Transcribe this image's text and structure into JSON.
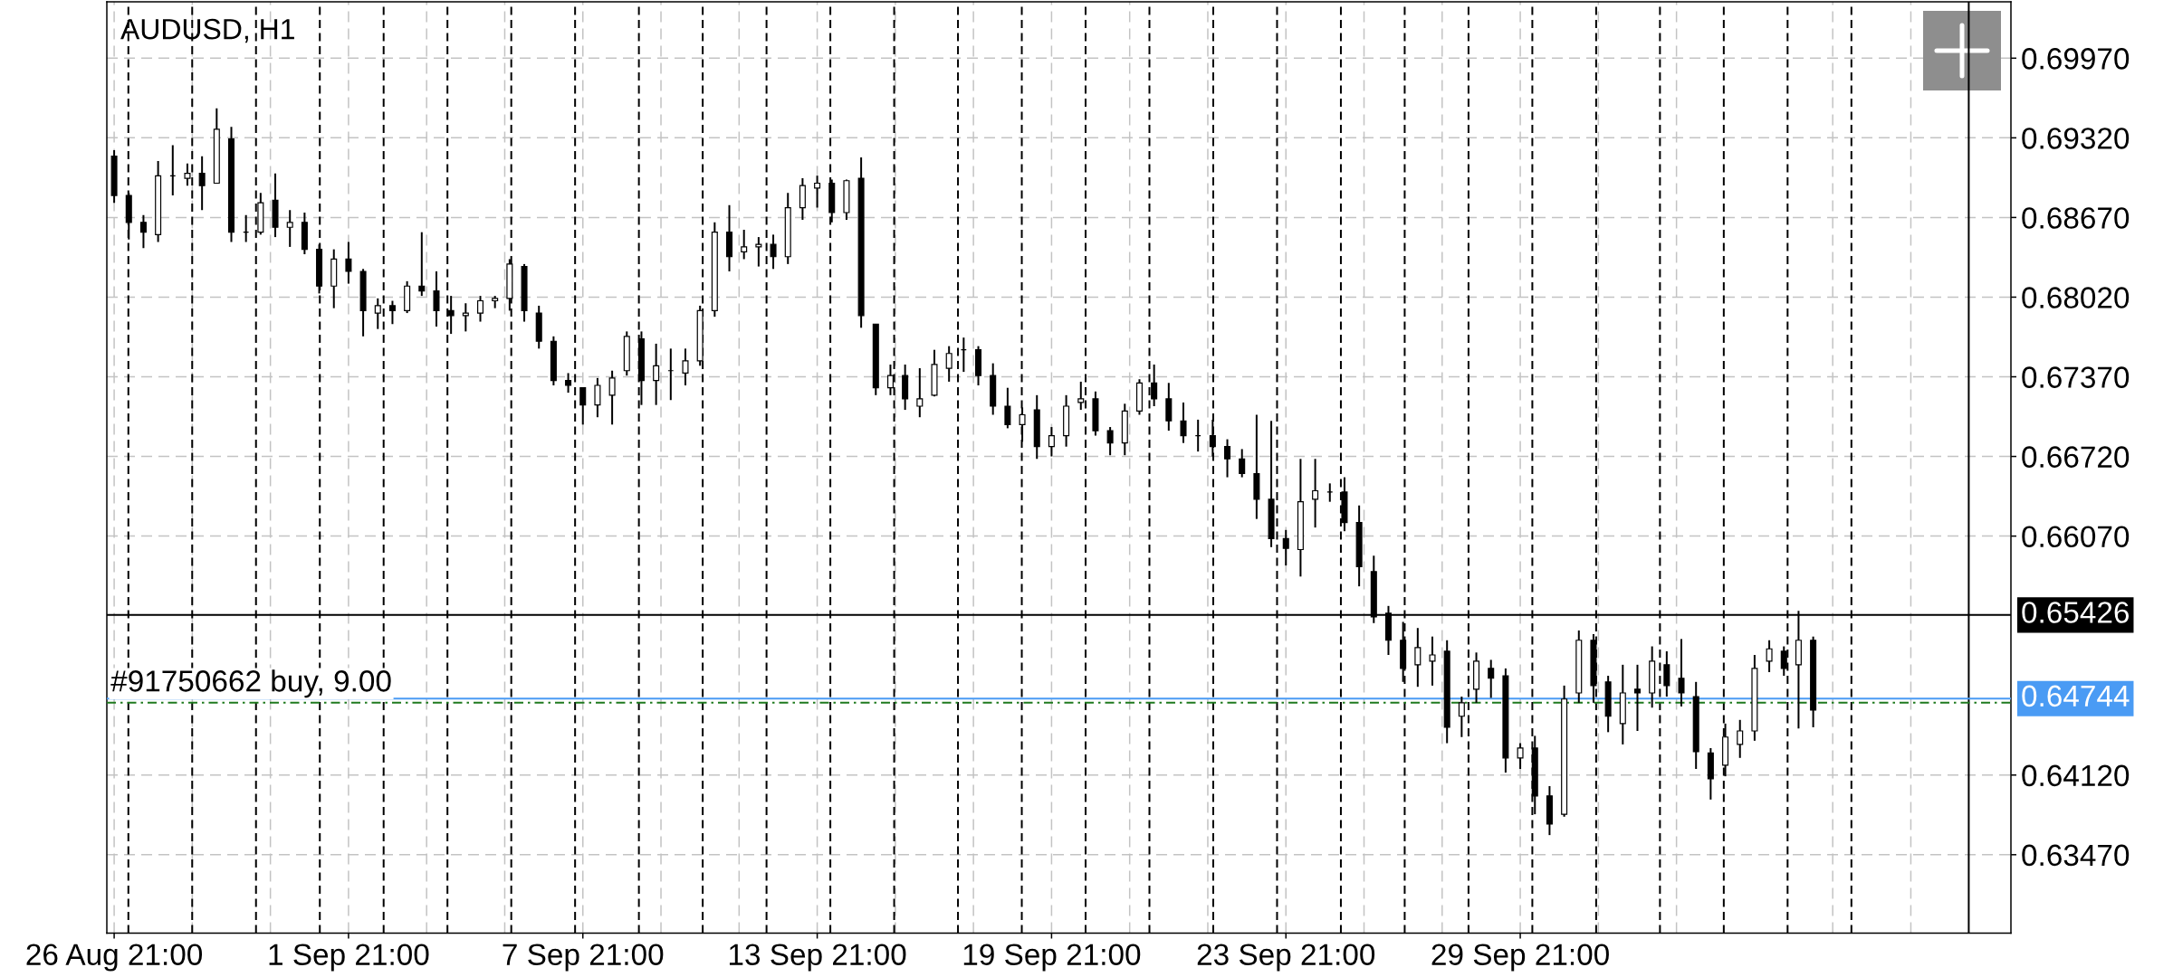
{
  "chart_data": {
    "type": "candlestick",
    "title": "AUDUSD, H1",
    "color": "#000000",
    "categories": [
      "26 Aug 21:00",
      null,
      null,
      null,
      null,
      null,
      null,
      null,
      null,
      null,
      null,
      null,
      null,
      null,
      null,
      null,
      "1 Sep 21:00",
      null,
      null,
      null,
      null,
      null,
      null,
      null,
      null,
      null,
      null,
      null,
      null,
      null,
      null,
      null,
      "7 Sep 21:00",
      null,
      null,
      null,
      null,
      null,
      null,
      null,
      null,
      null,
      null,
      null,
      null,
      null,
      null,
      null,
      "13 Sep 21:00",
      null,
      null,
      null,
      null,
      null,
      null,
      null,
      null,
      null,
      null,
      null,
      null,
      null,
      null,
      null,
      "19 Sep 21:00",
      null,
      null,
      null,
      null,
      null,
      null,
      null,
      null,
      null,
      null,
      null,
      null,
      null,
      null,
      null,
      "23 Sep 21:00",
      null,
      null,
      null,
      null,
      null,
      null,
      null,
      null,
      null,
      null,
      null,
      null,
      null,
      null,
      null,
      "29 Sep 21:00",
      null,
      null,
      null,
      null,
      null,
      null,
      null,
      null,
      null,
      null,
      null,
      null,
      null,
      null,
      null,
      null,
      null,
      null,
      null,
      null,
      null,
      null,
      null,
      null,
      null,
      null,
      null,
      null,
      null,
      null,
      null,
      null,
      null
    ],
    "ohlc": [
      [
        0.6917,
        0.6922,
        0.6879,
        0.6885
      ],
      [
        0.6885,
        0.6887,
        0.6849,
        0.6863
      ],
      [
        0.6863,
        0.6869,
        0.6842,
        0.6855
      ],
      [
        0.6853,
        0.6913,
        0.6847,
        0.6901
      ],
      [
        0.6901,
        0.6926,
        0.6885,
        0.6901
      ],
      [
        0.6899,
        0.6911,
        0.6893,
        0.6903
      ],
      [
        0.6903,
        0.6917,
        0.6873,
        0.6893
      ],
      [
        0.6895,
        0.6956,
        0.6895,
        0.6939
      ],
      [
        0.6931,
        0.6941,
        0.6847,
        0.6855
      ],
      [
        0.6855,
        0.6869,
        0.6847,
        0.6855
      ],
      [
        0.6855,
        0.6887,
        0.6853,
        0.6879
      ],
      [
        0.6881,
        0.6903,
        0.6851,
        0.6859
      ],
      [
        0.6859,
        0.6873,
        0.6843,
        0.6863
      ],
      [
        0.6863,
        0.6871,
        0.6837,
        0.6841
      ],
      [
        0.6841,
        0.6845,
        0.6805,
        0.6811
      ],
      [
        0.6811,
        0.6841,
        0.6793,
        0.6833
      ],
      [
        0.6833,
        0.6847,
        0.6813,
        0.6823
      ],
      [
        0.6823,
        0.6825,
        0.677,
        0.6791
      ],
      [
        0.6789,
        0.6801,
        0.6776,
        0.6795
      ],
      [
        0.6795,
        0.6799,
        0.678,
        0.6791
      ],
      [
        0.6791,
        0.6815,
        0.6789,
        0.6811
      ],
      [
        0.6811,
        0.6855,
        0.6803,
        0.6807
      ],
      [
        0.6807,
        0.6823,
        0.6778,
        0.6791
      ],
      [
        0.6791,
        0.6803,
        0.6772,
        0.6787
      ],
      [
        0.6787,
        0.6797,
        0.6774,
        0.6789
      ],
      [
        0.6789,
        0.6803,
        0.6782,
        0.6799
      ],
      [
        0.6799,
        0.6803,
        0.6793,
        0.6801
      ],
      [
        0.6801,
        0.6833,
        0.6791,
        0.6829
      ],
      [
        0.6827,
        0.6829,
        0.6782,
        0.6791
      ],
      [
        0.6789,
        0.6795,
        0.676,
        0.6766
      ],
      [
        0.6766,
        0.677,
        0.673,
        0.6734
      ],
      [
        0.6734,
        0.674,
        0.6724,
        0.673
      ],
      [
        0.6728,
        0.6728,
        0.6698,
        0.6714
      ],
      [
        0.6714,
        0.6736,
        0.6704,
        0.673
      ],
      [
        0.6722,
        0.6742,
        0.6698,
        0.6736
      ],
      [
        0.6742,
        0.6774,
        0.6738,
        0.677
      ],
      [
        0.6768,
        0.6774,
        0.6714,
        0.6734
      ],
      [
        0.6734,
        0.6764,
        0.6714,
        0.6746
      ],
      [
        0.6742,
        0.676,
        0.6718,
        0.6742
      ],
      [
        0.674,
        0.676,
        0.673,
        0.675
      ],
      [
        0.675,
        0.6795,
        0.6746,
        0.6791
      ],
      [
        0.6791,
        0.6863,
        0.6786,
        0.6855
      ],
      [
        0.6855,
        0.6877,
        0.6823,
        0.6835
      ],
      [
        0.6839,
        0.6857,
        0.6833,
        0.6843
      ],
      [
        0.6843,
        0.6851,
        0.6827,
        0.6845
      ],
      [
        0.6845,
        0.6853,
        0.6825,
        0.6835
      ],
      [
        0.6835,
        0.6887,
        0.6829,
        0.6875
      ],
      [
        0.6875,
        0.6899,
        0.6865,
        0.6893
      ],
      [
        0.6891,
        0.6901,
        0.6875,
        0.6895
      ],
      [
        0.6895,
        0.6898,
        0.6863,
        0.6871
      ],
      [
        0.6871,
        0.6898,
        0.6865,
        0.6897
      ],
      [
        0.6899,
        0.6916,
        0.6777,
        0.6787
      ],
      [
        0.678,
        0.678,
        0.6722,
        0.6728
      ],
      [
        0.6728,
        0.6747,
        0.6722,
        0.6738
      ],
      [
        0.6738,
        0.6747,
        0.671,
        0.6719
      ],
      [
        0.6713,
        0.6744,
        0.6704,
        0.6719
      ],
      [
        0.6722,
        0.6759,
        0.6721,
        0.6747
      ],
      [
        0.6744,
        0.6762,
        0.6733,
        0.6756
      ],
      [
        0.6759,
        0.6769,
        0.6741,
        0.6759
      ],
      [
        0.6759,
        0.6762,
        0.673,
        0.6738
      ],
      [
        0.6738,
        0.6748,
        0.6706,
        0.6713
      ],
      [
        0.6713,
        0.6728,
        0.6695,
        0.6698
      ],
      [
        0.6698,
        0.6712,
        0.6684,
        0.6706
      ],
      [
        0.671,
        0.6722,
        0.667,
        0.668
      ],
      [
        0.668,
        0.6696,
        0.6672,
        0.6689
      ],
      [
        0.6689,
        0.6722,
        0.668,
        0.6713
      ],
      [
        0.6716,
        0.6733,
        0.671,
        0.6719
      ],
      [
        0.6719,
        0.6725,
        0.6689,
        0.6693
      ],
      [
        0.6693,
        0.6696,
        0.6673,
        0.6683
      ],
      [
        0.6683,
        0.6715,
        0.6673,
        0.6709
      ],
      [
        0.6709,
        0.6735,
        0.6706,
        0.6732
      ],
      [
        0.6732,
        0.6747,
        0.6713,
        0.6719
      ],
      [
        0.6719,
        0.6732,
        0.6693,
        0.6701
      ],
      [
        0.6701,
        0.6716,
        0.6683,
        0.6689
      ],
      [
        0.6689,
        0.6702,
        0.6676,
        0.6689
      ],
      [
        0.6689,
        0.6702,
        0.6672,
        0.668
      ],
      [
        0.668,
        0.6686,
        0.6655,
        0.667
      ],
      [
        0.667,
        0.6678,
        0.6655,
        0.6658
      ],
      [
        0.6658,
        0.6706,
        0.6621,
        0.6637
      ],
      [
        0.6637,
        0.6701,
        0.6598,
        0.6605
      ],
      [
        0.6605,
        0.6612,
        0.6583,
        0.6597
      ],
      [
        0.6596,
        0.667,
        0.6574,
        0.6635
      ],
      [
        0.6637,
        0.667,
        0.6614,
        0.6644
      ],
      [
        0.6643,
        0.665,
        0.6635,
        0.6643
      ],
      [
        0.6643,
        0.6655,
        0.6611,
        0.6618
      ],
      [
        0.6618,
        0.6632,
        0.6566,
        0.6582
      ],
      [
        0.6578,
        0.6591,
        0.6536,
        0.6541
      ],
      [
        0.6544,
        0.655,
        0.651,
        0.6522
      ],
      [
        0.6522,
        0.6537,
        0.6488,
        0.6499
      ],
      [
        0.6502,
        0.6532,
        0.6484,
        0.6516
      ],
      [
        0.6505,
        0.6525,
        0.6485,
        0.651
      ],
      [
        0.6513,
        0.6522,
        0.6438,
        0.6451
      ],
      [
        0.646,
        0.6476,
        0.6443,
        0.6471
      ],
      [
        0.6482,
        0.6512,
        0.6471,
        0.6505
      ],
      [
        0.6499,
        0.6506,
        0.6475,
        0.6491
      ],
      [
        0.6493,
        0.6499,
        0.6414,
        0.6426
      ],
      [
        0.6426,
        0.6438,
        0.6417,
        0.6434
      ],
      [
        0.6434,
        0.6444,
        0.638,
        0.6395
      ],
      [
        0.6395,
        0.6403,
        0.6363,
        0.6372
      ],
      [
        0.638,
        0.6485,
        0.6378,
        0.6474
      ],
      [
        0.6479,
        0.653,
        0.6471,
        0.6522
      ],
      [
        0.6522,
        0.6527,
        0.6471,
        0.6485
      ],
      [
        0.6488,
        0.6493,
        0.6447,
        0.646
      ],
      [
        0.6454,
        0.6502,
        0.6437,
        0.6479
      ],
      [
        0.6482,
        0.6502,
        0.6448,
        0.6479
      ],
      [
        0.6479,
        0.6517,
        0.6467,
        0.6505
      ],
      [
        0.6502,
        0.6513,
        0.6476,
        0.6485
      ],
      [
        0.6491,
        0.6523,
        0.6468,
        0.6479
      ],
      [
        0.6476,
        0.6488,
        0.6417,
        0.6431
      ],
      [
        0.643,
        0.6434,
        0.6392,
        0.6409
      ],
      [
        0.642,
        0.6454,
        0.6411,
        0.6443
      ],
      [
        0.6437,
        0.6457,
        0.6426,
        0.6448
      ],
      [
        0.6448,
        0.651,
        0.644,
        0.6499
      ],
      [
        0.6505,
        0.6522,
        0.6496,
        0.6515
      ],
      [
        0.6513,
        0.6517,
        0.6493,
        0.6499
      ],
      [
        0.6502,
        0.6546,
        0.645,
        0.6522
      ],
      [
        0.6522,
        0.6525,
        0.6451,
        0.6465
      ],
      null,
      null,
      null,
      null,
      null,
      null,
      null,
      null,
      null,
      null,
      null,
      null,
      null
    ],
    "ylim": [
      0.6283,
      0.7043
    ],
    "yticks": [
      {
        "value": 0.6997,
        "label": "0.69970"
      },
      {
        "value": 0.6932,
        "label": "0.69320"
      },
      {
        "value": 0.6867,
        "label": "0.68670"
      },
      {
        "value": 0.6802,
        "label": "0.68020"
      },
      {
        "value": 0.6737,
        "label": "0.67370"
      },
      {
        "value": 0.6672,
        "label": "0.66720"
      },
      {
        "value": 0.6607,
        "label": "0.66070"
      },
      {
        "value": 0.6412,
        "label": "0.64120"
      },
      {
        "value": 0.6347,
        "label": "0.63470"
      }
    ],
    "grid": true,
    "ref_lines": [
      {
        "axis": "y",
        "value": 0.65426,
        "label": "0.65426",
        "color": "#000000",
        "line_style": "solid"
      },
      {
        "axis": "y",
        "value": 0.64744,
        "label": "0.64744",
        "color": "#4a9bf4",
        "line_style": "solid"
      },
      {
        "axis": "y",
        "value": 0.6471,
        "label": "#91750662 buy, 9.00",
        "color": "#1f7a1f",
        "line_style": "dashdot"
      }
    ]
  }
}
